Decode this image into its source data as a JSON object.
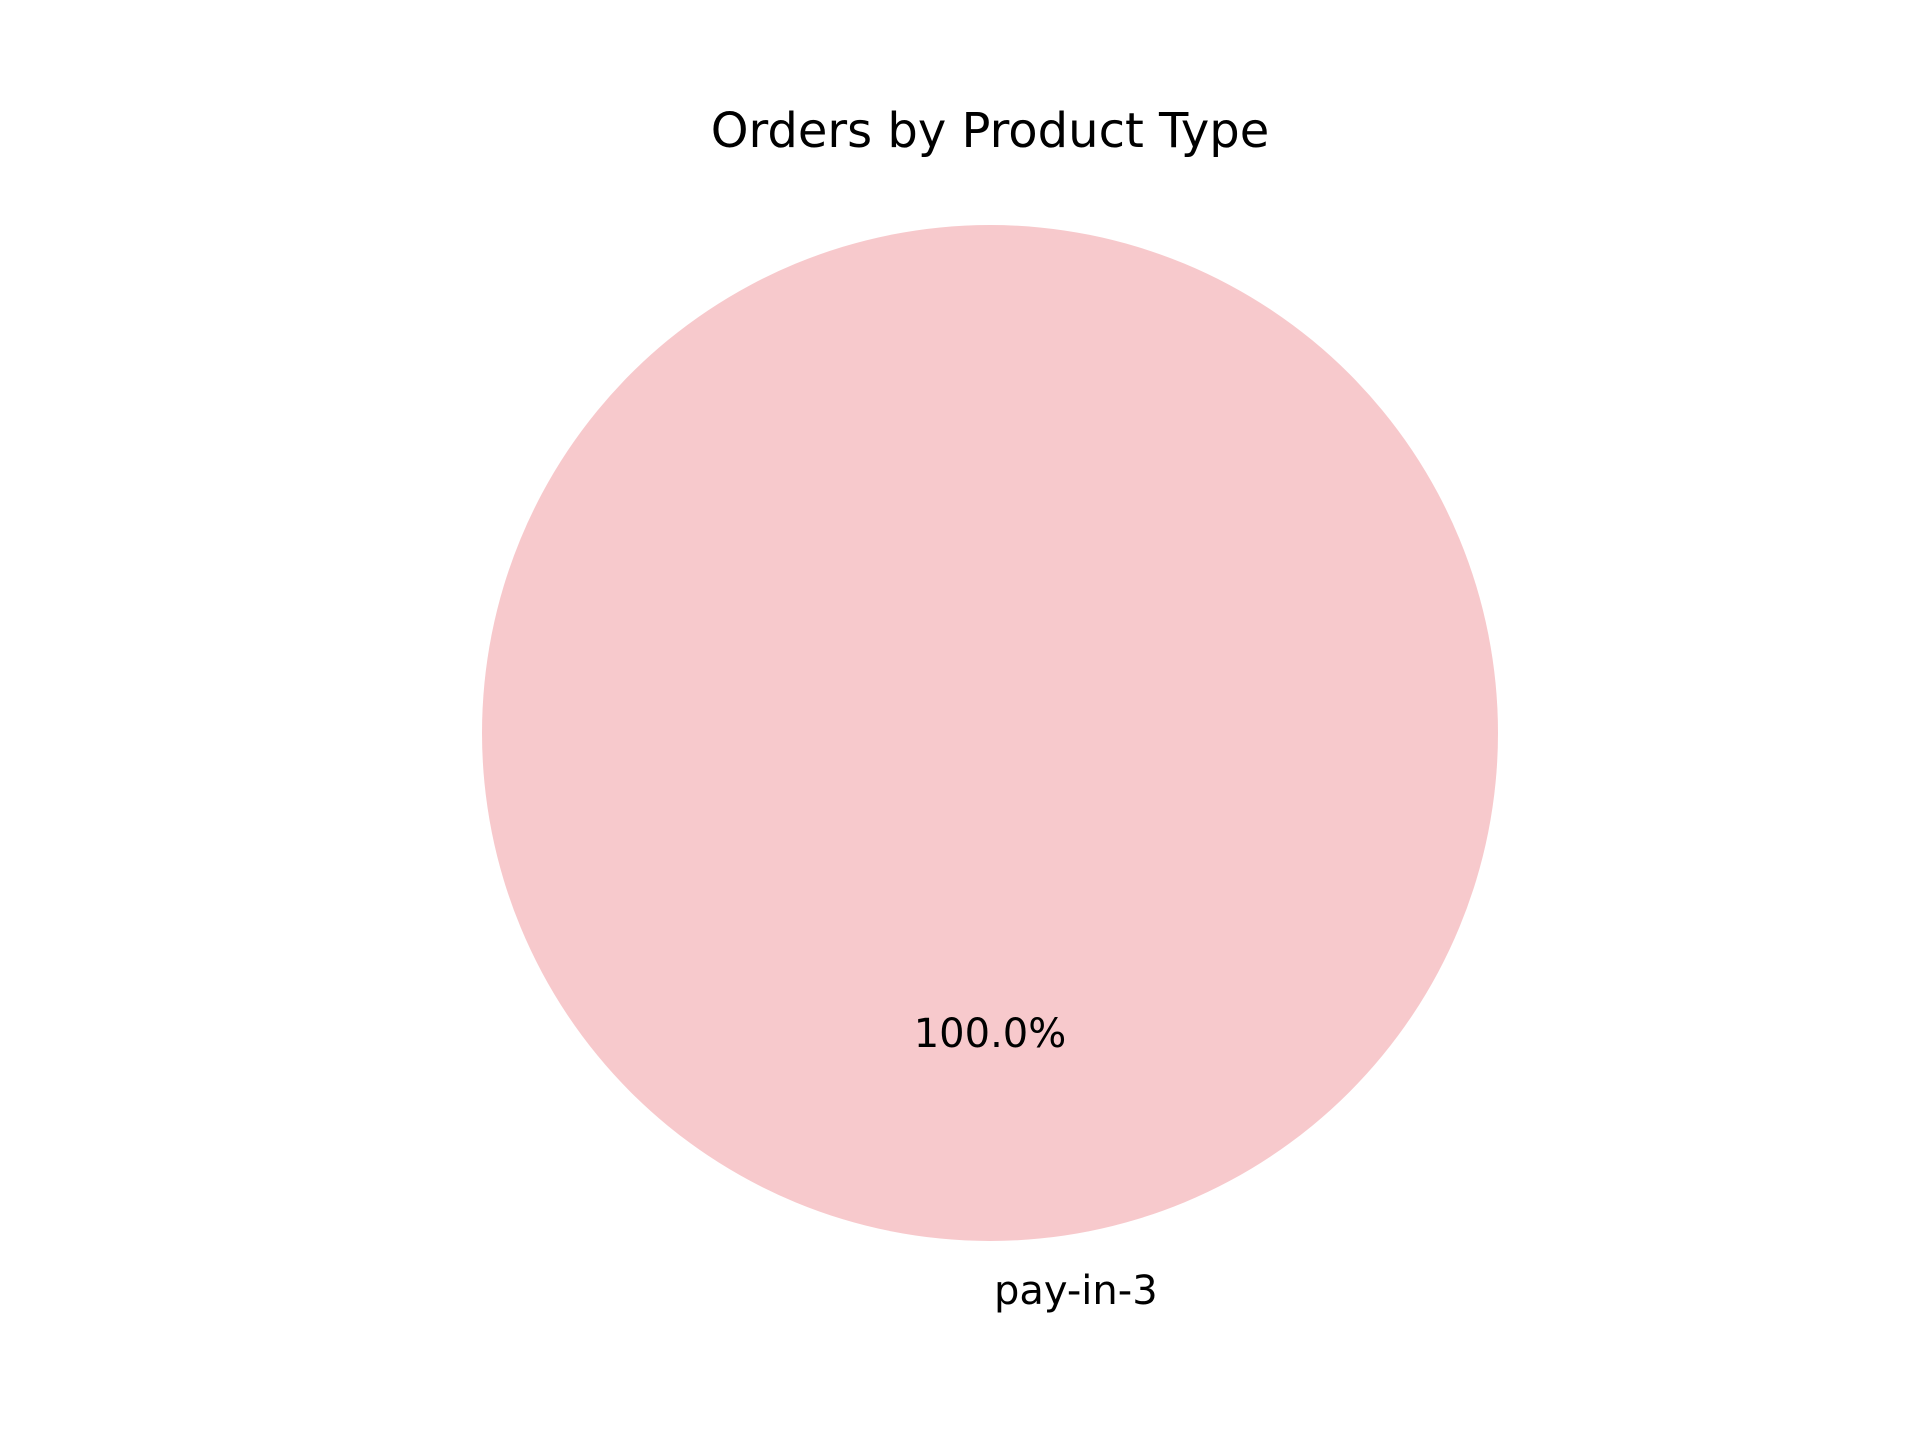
{
  "chart_data": {
    "type": "pie",
    "title": "Orders by Product Type",
    "categories": [
      "pay-in-3"
    ],
    "values": [
      100.0
    ],
    "percent_labels": [
      "100.0%"
    ],
    "colors": [
      "#f7c9cc"
    ],
    "legend": "none"
  }
}
